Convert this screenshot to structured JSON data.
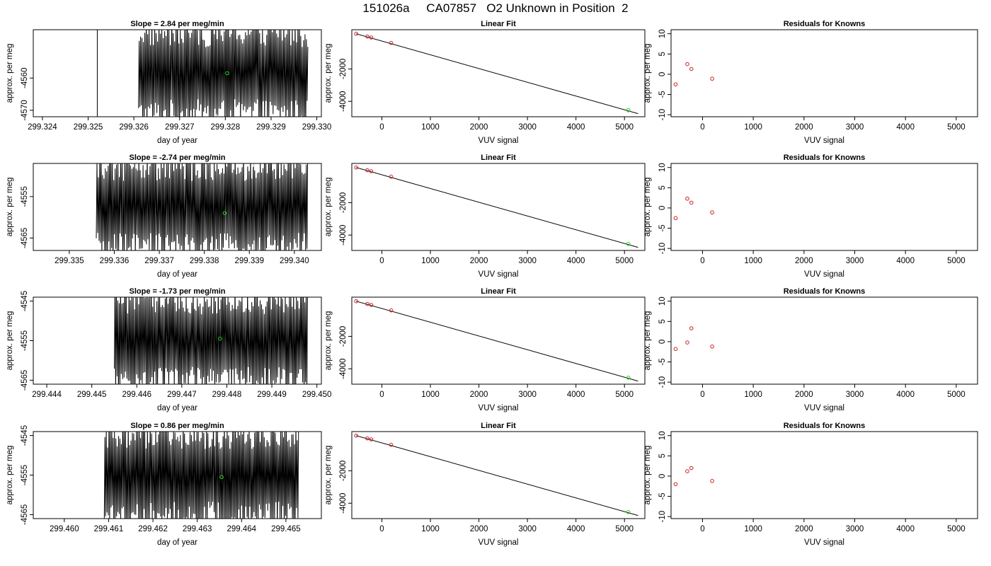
{
  "figure": {
    "title": "151026a     CA07857   O2 Unknown in Position  2",
    "colors": {
      "trace": "#000000",
      "gray_trace": "#aaaaaa",
      "knowns": "#cc2222",
      "unknown": "#22cc22",
      "axis": "#000000"
    }
  },
  "chart_data": [
    {
      "type": "line",
      "row": 0,
      "col": 0,
      "title": "Slope =  2.84  per meg/min",
      "xlabel": "day of year",
      "ylabel": "approx. per meg",
      "xlim": [
        299.3238,
        299.3301
      ],
      "ylim": [
        -4572,
        -4545
      ],
      "xticks": [
        "299.324",
        "299.325",
        "299.326",
        "299.327",
        "299.328",
        "299.329",
        "299.330"
      ],
      "yticks": [
        "-4560",
        "-4570"
      ],
      "trace": {
        "x0": 299.3261,
        "x1": 299.3298,
        "period": 3.1e-05,
        "amp_low": -4572,
        "amp_high": -4545,
        "spike_x": 299.3252,
        "gray_x": 299.3278
      },
      "unknown_point": {
        "x": 299.32804,
        "y": -4558.5
      }
    },
    {
      "type": "scatter",
      "row": 0,
      "col": 1,
      "title": "Linear Fit",
      "xlabel": "VUV signal",
      "ylabel": "approx. per meg",
      "xlim": [
        -620,
        5420
      ],
      "ylim": [
        -4950,
        420
      ],
      "xticks": [
        "0",
        "1000",
        "2000",
        "3000",
        "4000",
        "5000"
      ],
      "yticks": [
        "-2000",
        "-4000"
      ],
      "knowns": [
        {
          "x": -530,
          "y": 170
        },
        {
          "x": -300,
          "y": 0
        },
        {
          "x": -220,
          "y": -60
        },
        {
          "x": 190,
          "y": -395
        }
      ],
      "unknown": {
        "x": 5080,
        "y": -4550
      },
      "fit_line": {
        "x0": -530,
        "y0": 170,
        "x1": 5280,
        "y1": -4760
      }
    },
    {
      "type": "scatter",
      "row": 0,
      "col": 2,
      "title": "Residuals for Knowns",
      "xlabel": "VUV signal",
      "ylabel": "approx. per meg",
      "xlim": [
        -620,
        5420
      ],
      "ylim": [
        -10.5,
        11
      ],
      "xticks": [
        "0",
        "1000",
        "2000",
        "3000",
        "4000",
        "5000"
      ],
      "yticks": [
        "10",
        "5",
        "0",
        "-5",
        "-10"
      ],
      "points": [
        {
          "x": -530,
          "y": -2.5
        },
        {
          "x": -300,
          "y": 2.5
        },
        {
          "x": -220,
          "y": 1.3
        },
        {
          "x": 190,
          "y": -1.1
        }
      ]
    },
    {
      "type": "line",
      "row": 1,
      "col": 0,
      "title": "Slope =  -2.74  per meg/min",
      "xlabel": "day of year",
      "ylabel": "approx. per meg",
      "xlim": [
        299.3342,
        299.3406
      ],
      "ylim": [
        -4568,
        -4547
      ],
      "xticks": [
        "299.335",
        "299.336",
        "299.337",
        "299.338",
        "299.339",
        "299.340"
      ],
      "yticks": [
        "-4555",
        "-4565"
      ],
      "trace": {
        "x0": 299.3356,
        "x1": 299.3403,
        "period": 3.1e-05,
        "amp_low": -4568,
        "amp_high": -4547,
        "spike_x": null,
        "gray_x": 299.3391
      },
      "unknown_point": {
        "x": 299.33845,
        "y": -4559
      }
    },
    {
      "type": "scatter",
      "row": 1,
      "col": 1,
      "title": "Linear Fit",
      "xlabel": "VUV signal",
      "ylabel": "approx. per meg",
      "xlim": [
        -620,
        5420
      ],
      "ylim": [
        -4950,
        420
      ],
      "xticks": [
        "0",
        "1000",
        "2000",
        "3000",
        "4000",
        "5000"
      ],
      "yticks": [
        "-2000",
        "-4000"
      ],
      "knowns": [
        {
          "x": -530,
          "y": 170
        },
        {
          "x": -300,
          "y": 0
        },
        {
          "x": -220,
          "y": -60
        },
        {
          "x": 190,
          "y": -395
        }
      ],
      "unknown": {
        "x": 5080,
        "y": -4550
      },
      "fit_line": {
        "x0": -530,
        "y0": 170,
        "x1": 5280,
        "y1": -4760
      }
    },
    {
      "type": "scatter",
      "row": 1,
      "col": 2,
      "title": "Residuals for Knowns",
      "xlabel": "VUV signal",
      "ylabel": "approx. per meg",
      "xlim": [
        -620,
        5420
      ],
      "ylim": [
        -10.5,
        11
      ],
      "xticks": [
        "0",
        "1000",
        "2000",
        "3000",
        "4000",
        "5000"
      ],
      "yticks": [
        "10",
        "5",
        "0",
        "-5",
        "-10"
      ],
      "points": [
        {
          "x": -530,
          "y": -2.5
        },
        {
          "x": -300,
          "y": 2.3
        },
        {
          "x": -220,
          "y": 1.3
        },
        {
          "x": 190,
          "y": -1.1
        }
      ]
    },
    {
      "type": "line",
      "row": 2,
      "col": 0,
      "title": "Slope =  -1.73  per meg/min",
      "xlabel": "day of year",
      "ylabel": "approx. per meg",
      "xlim": [
        299.4437,
        299.4501
      ],
      "ylim": [
        -4566,
        -4544
      ],
      "xticks": [
        "299.444",
        "299.445",
        "299.446",
        "299.447",
        "299.448",
        "299.449",
        "299.450"
      ],
      "yticks": [
        "-4545",
        "-4555",
        "-4565"
      ],
      "trace": {
        "x0": 299.4455,
        "x1": 299.4498,
        "period": 3.1e-05,
        "amp_low": -4566,
        "amp_high": -4544,
        "spike_x": null,
        "gray_x": null
      },
      "unknown_point": {
        "x": 299.44785,
        "y": -4554.5
      }
    },
    {
      "type": "scatter",
      "row": 2,
      "col": 1,
      "title": "Linear Fit",
      "xlabel": "VUV signal",
      "ylabel": "approx. per meg",
      "xlim": [
        -620,
        5420
      ],
      "ylim": [
        -4950,
        420
      ],
      "xticks": [
        "0",
        "1000",
        "2000",
        "3000",
        "4000",
        "5000"
      ],
      "yticks": [
        "-2000",
        "-4000"
      ],
      "knowns": [
        {
          "x": -530,
          "y": 170
        },
        {
          "x": -300,
          "y": 0
        },
        {
          "x": -220,
          "y": -60
        },
        {
          "x": 190,
          "y": -395
        }
      ],
      "unknown": {
        "x": 5080,
        "y": -4550
      },
      "fit_line": {
        "x0": -530,
        "y0": 170,
        "x1": 5280,
        "y1": -4760
      }
    },
    {
      "type": "scatter",
      "row": 2,
      "col": 2,
      "title": "Residuals for Knowns",
      "xlabel": "VUV signal",
      "ylabel": "approx. per meg",
      "xlim": [
        -620,
        5420
      ],
      "ylim": [
        -10.5,
        11
      ],
      "xticks": [
        "0",
        "1000",
        "2000",
        "3000",
        "4000",
        "5000"
      ],
      "yticks": [
        "10",
        "5",
        "0",
        "-5",
        "-10"
      ],
      "points": [
        {
          "x": -530,
          "y": -1.8
        },
        {
          "x": -300,
          "y": -0.2
        },
        {
          "x": -220,
          "y": 3.3
        },
        {
          "x": 190,
          "y": -1.2
        }
      ]
    },
    {
      "type": "line",
      "row": 3,
      "col": 0,
      "title": "Slope =  0.86  per meg/min",
      "xlabel": "day of year",
      "ylabel": "approx. per meg",
      "xlim": [
        299.4593,
        299.4658
      ],
      "ylim": [
        -4566,
        -4544
      ],
      "xticks": [
        "299.460",
        "299.461",
        "299.462",
        "299.463",
        "299.464",
        "299.465"
      ],
      "yticks": [
        "-4545",
        "-4555",
        "-4565"
      ],
      "trace": {
        "x0": 299.4609,
        "x1": 299.4653,
        "period": 3.1e-05,
        "amp_low": -4566,
        "amp_high": -4544,
        "spike_x": null,
        "gray_x": null
      },
      "unknown_point": {
        "x": 299.46355,
        "y": -4555.5
      }
    },
    {
      "type": "scatter",
      "row": 3,
      "col": 1,
      "title": "Linear Fit",
      "xlabel": "VUV signal",
      "ylabel": "approx. per meg",
      "xlim": [
        -620,
        5420
      ],
      "ylim": [
        -4950,
        420
      ],
      "xticks": [
        "0",
        "1000",
        "2000",
        "3000",
        "4000",
        "5000"
      ],
      "yticks": [
        "-2000",
        "-4000"
      ],
      "knowns": [
        {
          "x": -530,
          "y": 170
        },
        {
          "x": -300,
          "y": 0
        },
        {
          "x": -220,
          "y": -60
        },
        {
          "x": 190,
          "y": -395
        }
      ],
      "unknown": {
        "x": 5080,
        "y": -4550
      },
      "fit_line": {
        "x0": -530,
        "y0": 170,
        "x1": 5280,
        "y1": -4760
      }
    },
    {
      "type": "scatter",
      "row": 3,
      "col": 2,
      "title": "Residuals for Knowns",
      "xlabel": "VUV signal",
      "ylabel": "approx. per meg",
      "xlim": [
        -620,
        5420
      ],
      "ylim": [
        -10.5,
        11
      ],
      "xticks": [
        "0",
        "1000",
        "2000",
        "3000",
        "4000",
        "5000"
      ],
      "yticks": [
        "10",
        "5",
        "0",
        "-5",
        "-10"
      ],
      "points": [
        {
          "x": -530,
          "y": -2.0
        },
        {
          "x": -300,
          "y": 1.2
        },
        {
          "x": -220,
          "y": 2.0
        },
        {
          "x": 190,
          "y": -1.2
        }
      ]
    }
  ]
}
